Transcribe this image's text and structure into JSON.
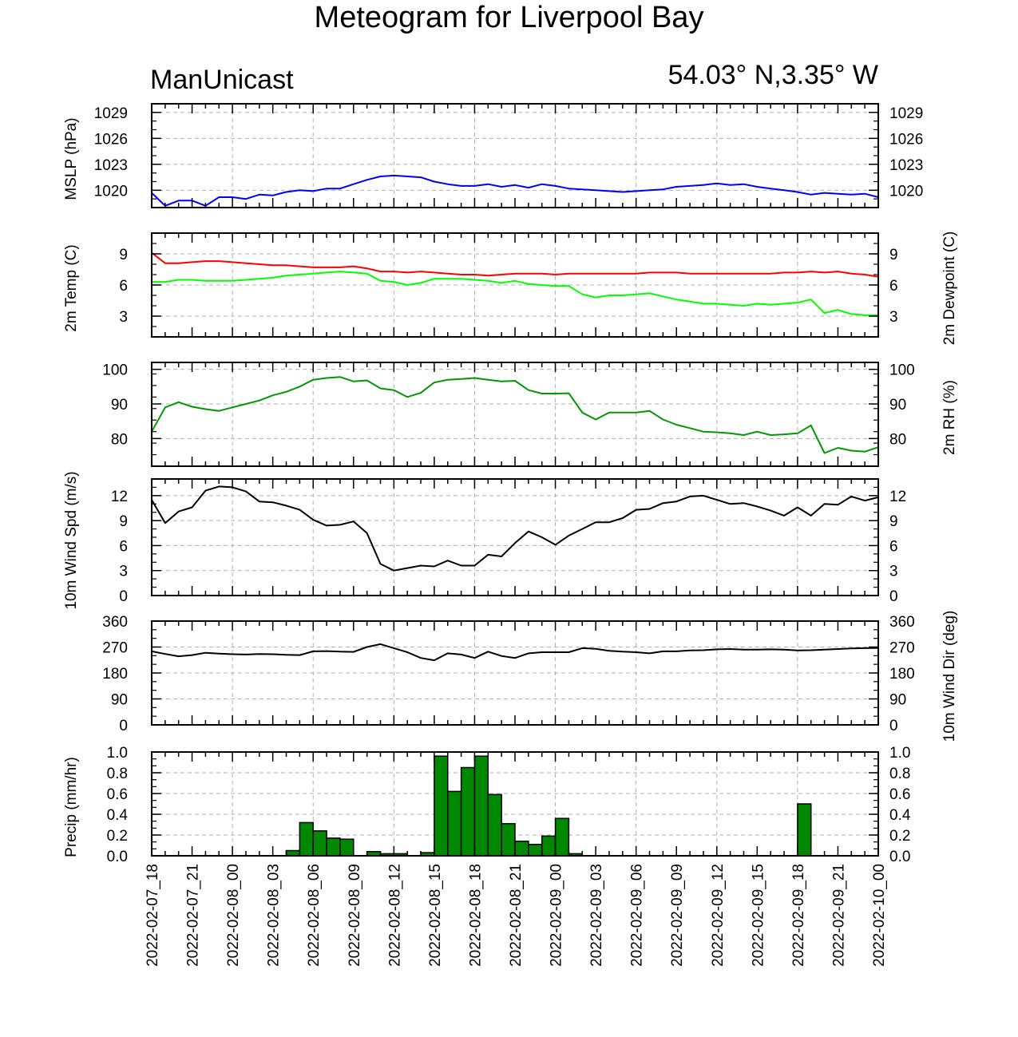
{
  "title": "Meteogram for Liverpool Bay",
  "subtitle_left": "ManUnicast",
  "subtitle_right": "54.03° N,3.35° W",
  "colors": {
    "mslp": "#0000ff",
    "temp": "#ff0000",
    "dewpoint": "#00ff00",
    "rh": "#009900",
    "wind": "#000000",
    "precip_fill": "#008800"
  },
  "chart_data": {
    "type": "line",
    "x_labels": [
      "2022-02-07_18",
      "2022-02-07_21",
      "2022-02-08_00",
      "2022-02-08_03",
      "2022-02-08_06",
      "2022-02-08_09",
      "2022-02-08_12",
      "2022-02-08_15",
      "2022-02-08_18",
      "2022-02-08_21",
      "2022-02-09_00",
      "2022-02-09_03",
      "2022-02-09_06",
      "2022-02-09_09",
      "2022-02-09_12",
      "2022-02-09_15",
      "2022-02-09_18",
      "2022-02-09_21",
      "2022-02-10_00"
    ],
    "x_hours": [
      0,
      1,
      2,
      3,
      4,
      5,
      6,
      7,
      8,
      9,
      10,
      11,
      12,
      13,
      14,
      15,
      16,
      17,
      18,
      19,
      20,
      21,
      22,
      23,
      24,
      25,
      26,
      27,
      28,
      29,
      30,
      31,
      32,
      33,
      34,
      35,
      36,
      37,
      38,
      39,
      40,
      41,
      42,
      43,
      44,
      45,
      46,
      47,
      48,
      49,
      50,
      51,
      52,
      53,
      54
    ],
    "panels": [
      {
        "ylabel": "MSLP (hPa)",
        "ylabel_right": "",
        "ylim": [
          1018,
          1030
        ],
        "ticks": [
          1020,
          1023,
          1026,
          1029
        ],
        "tick_labels": [
          "1020",
          "1023",
          "1026",
          "1029"
        ],
        "grid": true,
        "series": [
          {
            "type": "line",
            "color_key": "mslp",
            "values": [
              1019.7,
              1018.2,
              1018.8,
              1018.8,
              1018.2,
              1019.2,
              1019.2,
              1019.0,
              1019.5,
              1019.4,
              1019.8,
              1020.0,
              1019.9,
              1020.2,
              1020.2,
              1020.7,
              1021.2,
              1021.6,
              1021.7,
              1021.6,
              1021.5,
              1021.0,
              1020.7,
              1020.5,
              1020.5,
              1020.7,
              1020.4,
              1020.6,
              1020.3,
              1020.7,
              1020.5,
              1020.2,
              1020.1,
              1020.0,
              1019.9,
              1019.8,
              1019.9,
              1020.0,
              1020.1,
              1020.4,
              1020.5,
              1020.6,
              1020.8,
              1020.6,
              1020.7,
              1020.4,
              1020.2,
              1020.0,
              1019.8,
              1019.5,
              1019.7,
              1019.6,
              1019.5,
              1019.6,
              1019.2
            ]
          }
        ]
      },
      {
        "ylabel": "2m Temp (C)",
        "ylabel_right": "2m Dewpoint (C)",
        "ylim": [
          1,
          11
        ],
        "ticks": [
          3,
          6,
          9
        ],
        "tick_labels": [
          "3",
          "6",
          "9"
        ],
        "grid": true,
        "series": [
          {
            "type": "line",
            "color_key": "temp",
            "values": [
              9.1,
              8.1,
              8.1,
              8.2,
              8.3,
              8.3,
              8.2,
              8.1,
              8.0,
              7.9,
              7.9,
              7.8,
              7.7,
              7.7,
              7.7,
              7.8,
              7.6,
              7.3,
              7.3,
              7.2,
              7.3,
              7.2,
              7.1,
              7.0,
              7.0,
              6.9,
              7.0,
              7.1,
              7.1,
              7.1,
              7.0,
              7.1,
              7.1,
              7.1,
              7.1,
              7.1,
              7.1,
              7.2,
              7.2,
              7.2,
              7.1,
              7.1,
              7.1,
              7.1,
              7.1,
              7.1,
              7.1,
              7.2,
              7.2,
              7.3,
              7.2,
              7.3,
              7.1,
              7.0,
              6.8
            ]
          },
          {
            "type": "line",
            "color_key": "dewpoint",
            "values": [
              6.3,
              6.3,
              6.5,
              6.5,
              6.4,
              6.4,
              6.4,
              6.5,
              6.6,
              6.7,
              6.9,
              7.0,
              7.1,
              7.2,
              7.3,
              7.2,
              7.1,
              6.4,
              6.3,
              6.0,
              6.2,
              6.6,
              6.6,
              6.6,
              6.5,
              6.4,
              6.2,
              6.4,
              6.1,
              6.0,
              5.9,
              5.9,
              5.1,
              4.8,
              5.0,
              5.0,
              5.1,
              5.2,
              4.9,
              4.6,
              4.4,
              4.2,
              4.2,
              4.1,
              4.0,
              4.2,
              4.1,
              4.2,
              4.3,
              4.6,
              3.3,
              3.6,
              3.2,
              3.1,
              3.1
            ]
          }
        ]
      },
      {
        "ylabel": "",
        "ylabel_right": "2m RH (%)",
        "ylim": [
          72,
          102
        ],
        "ticks": [
          80,
          90,
          100
        ],
        "tick_labels": [
          "80",
          "90",
          "100"
        ],
        "grid": true,
        "series": [
          {
            "type": "line",
            "color_key": "rh",
            "values": [
              82.0,
              89.0,
              90.5,
              89.2,
              88.5,
              88.0,
              89.0,
              90.0,
              91.0,
              92.5,
              93.5,
              95.0,
              97.0,
              97.5,
              97.8,
              96.5,
              96.8,
              94.5,
              94.0,
              92.0,
              93.2,
              96.2,
              97.0,
              97.2,
              97.5,
              97.0,
              96.5,
              96.7,
              94.0,
              93.0,
              93.0,
              93.1,
              87.5,
              85.5,
              87.5,
              87.5,
              87.5,
              88.0,
              85.5,
              84.0,
              83.0,
              82.0,
              81.8,
              81.5,
              81.0,
              82.0,
              81.0,
              81.2,
              81.5,
              83.8,
              75.8,
              77.3,
              76.5,
              76.2,
              77.5
            ]
          }
        ]
      },
      {
        "ylabel": "10m Wind Spd (m/s)",
        "ylabel_right": "",
        "ylim": [
          0,
          14
        ],
        "ticks": [
          0,
          3,
          6,
          9,
          12
        ],
        "tick_labels": [
          "0",
          "3",
          "6",
          "9",
          "12"
        ],
        "grid": true,
        "series": [
          {
            "type": "line",
            "color_key": "wind",
            "values": [
              11.5,
              8.7,
              10.1,
              10.6,
              12.6,
              13.1,
              13.0,
              12.5,
              11.3,
              11.2,
              10.8,
              10.3,
              9.1,
              8.4,
              8.5,
              8.9,
              7.5,
              3.8,
              3.0,
              3.3,
              3.6,
              3.5,
              4.2,
              3.6,
              3.6,
              4.9,
              4.7,
              6.3,
              7.7,
              7.0,
              6.1,
              7.2,
              8.0,
              8.8,
              8.8,
              9.3,
              10.3,
              10.4,
              11.1,
              11.3,
              11.9,
              12.0,
              11.5,
              11.0,
              11.1,
              10.7,
              10.2,
              9.6,
              10.6,
              9.6,
              11.0,
              10.9,
              11.9,
              11.4,
              11.8
            ]
          }
        ]
      },
      {
        "ylabel": "",
        "ylabel_right": "10m Wind Dir (deg)",
        "ylim": [
          0,
          360
        ],
        "ticks": [
          0,
          90,
          180,
          270,
          360
        ],
        "tick_labels": [
          "0",
          "90",
          "180",
          "270",
          "360"
        ],
        "grid": true,
        "series": [
          {
            "type": "line",
            "color_key": "wind",
            "values": [
              255,
              246,
              238,
              242,
              250,
              247,
              245,
              244,
              246,
              245,
              243,
              242,
              255,
              256,
              254,
              253,
              270,
              280,
              266,
              252,
              232,
              224,
              248,
              244,
              232,
              254,
              239,
              232,
              248,
              252,
              252,
              252,
              266,
              264,
              257,
              254,
              252,
              248,
              255,
              255,
              258,
              259,
              262,
              263,
              261,
              261,
              262,
              261,
              258,
              259,
              261,
              263,
              265,
              266,
              267
            ]
          }
        ]
      },
      {
        "ylabel": "Precip (mm/hr)",
        "ylabel_right": "",
        "ylim": [
          0,
          1
        ],
        "ticks": [
          0,
          0.2,
          0.4,
          0.6,
          0.8,
          1.0
        ],
        "tick_labels": [
          "0.0",
          "0.2",
          "0.4",
          "0.6",
          "0.8",
          "1.0"
        ],
        "grid": true,
        "series": [
          {
            "type": "bar",
            "color_key": "precip_fill",
            "values": [
              0,
              0,
              0,
              0,
              0,
              0,
              0,
              0,
              0,
              0,
              0.05,
              0.32,
              0.24,
              0.17,
              0.16,
              0,
              0.04,
              0.02,
              0.02,
              0,
              0.03,
              0.96,
              0.62,
              0.85,
              0.96,
              0.59,
              0.31,
              0.14,
              0.11,
              0.19,
              0.36,
              0.02,
              0,
              0,
              0,
              0,
              0,
              0,
              0,
              0,
              0,
              0,
              0,
              0,
              0,
              0,
              0,
              0,
              0.5,
              0,
              0,
              0,
              0,
              0
            ]
          }
        ]
      }
    ]
  }
}
